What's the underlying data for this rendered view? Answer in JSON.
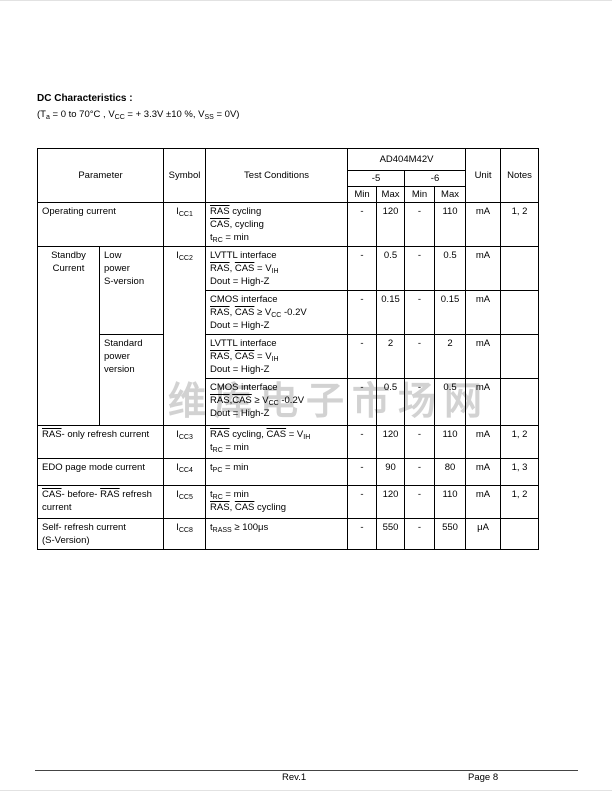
{
  "page": {
    "title": "DC Characteristics :",
    "conditions": "(T_{a} = 0 to  70°C ,  V_{CC} = + 3.3V  ±10 %, V_{SS} = 0V)",
    "watermark": "维库电子市场网",
    "footer": {
      "revision": "Rev.1",
      "page_number": "Page 8"
    }
  },
  "table": {
    "device": "AD404M42V",
    "header_rows": [
      [
        {
          "text": "Parameter",
          "colspan": 2,
          "rowspan": 3
        },
        {
          "text": "Symbol",
          "rowspan": 3
        },
        {
          "text": "Test Conditions",
          "rowspan": 3
        },
        {
          "text": "AD404M42V",
          "colspan": 4
        },
        {
          "text": "Unit",
          "rowspan": 3
        },
        {
          "text": "Notes",
          "rowspan": 3
        }
      ],
      [
        {
          "text": "-5",
          "colspan": 2
        },
        {
          "text": "-6",
          "colspan": 2
        }
      ],
      [
        {
          "text": "Min"
        },
        {
          "text": "Max"
        },
        {
          "text": "Min"
        },
        {
          "text": "Max"
        }
      ]
    ],
    "rows": [
      [
        {
          "lines": [
            "Operating current"
          ],
          "colspan": 2,
          "cls": "param"
        },
        {
          "lines": [
            "I_{CC1}"
          ],
          "cls": "sym"
        },
        {
          "lines": [
            "~RAS~ cycling",
            "~CAS~, cycling",
            "t_{RC} = min"
          ],
          "cls": "cond"
        },
        {
          "lines": [
            "-"
          ],
          "cls": "val"
        },
        {
          "lines": [
            "120"
          ],
          "cls": "val"
        },
        {
          "lines": [
            "-"
          ],
          "cls": "val"
        },
        {
          "lines": [
            "110"
          ],
          "cls": "val"
        },
        {
          "lines": [
            "mA"
          ],
          "cls": "unit"
        },
        {
          "lines": [
            "1, 2"
          ],
          "cls": "notes"
        }
      ],
      [
        {
          "lines": [
            "Standby",
            "Current"
          ],
          "rowspan": 4,
          "cls": "group"
        },
        {
          "lines": [
            "Low",
            "power",
            "S-version"
          ],
          "rowspan": 2,
          "cls": "subgroup"
        },
        {
          "lines": [
            "I_{CC2}"
          ],
          "rowspan": 4,
          "cls": "sym"
        },
        {
          "lines": [
            "LVTTL interface",
            "~RAS~, ~CAS~ = V_{IH}",
            "Dout = High-Z"
          ],
          "cls": "cond"
        },
        {
          "lines": [
            "-"
          ],
          "cls": "val"
        },
        {
          "lines": [
            "0.5"
          ],
          "cls": "val"
        },
        {
          "lines": [
            "-"
          ],
          "cls": "val"
        },
        {
          "lines": [
            "0.5"
          ],
          "cls": "val"
        },
        {
          "lines": [
            "mA"
          ],
          "cls": "unit"
        },
        {
          "lines": [
            ""
          ],
          "cls": "notes"
        }
      ],
      [
        {
          "lines": [
            "CMOS interface",
            "~RAS~,  ~CAS~ ≥ V_{CC} -0.2V",
            "Dout = High-Z"
          ],
          "cls": "cond"
        },
        {
          "lines": [
            "-"
          ],
          "cls": "val"
        },
        {
          "lines": [
            "0.15"
          ],
          "cls": "val"
        },
        {
          "lines": [
            "-"
          ],
          "cls": "val"
        },
        {
          "lines": [
            "0.15"
          ],
          "cls": "val"
        },
        {
          "lines": [
            "mA"
          ],
          "cls": "unit"
        },
        {
          "lines": [
            ""
          ],
          "cls": "notes"
        }
      ],
      [
        {
          "lines": [
            "Standard",
            "power",
            "version"
          ],
          "rowspan": 2,
          "cls": "subgroup"
        },
        {
          "lines": [
            "LVTTL interface",
            "~RAS~, ~CAS~ = V_{IH}",
            "Dout = High-Z"
          ],
          "cls": "cond"
        },
        {
          "lines": [
            "-"
          ],
          "cls": "val"
        },
        {
          "lines": [
            "2"
          ],
          "cls": "val"
        },
        {
          "lines": [
            "-"
          ],
          "cls": "val"
        },
        {
          "lines": [
            "2"
          ],
          "cls": "val"
        },
        {
          "lines": [
            "mA"
          ],
          "cls": "unit"
        },
        {
          "lines": [
            ""
          ],
          "cls": "notes"
        }
      ],
      [
        {
          "lines": [
            "CMOS interface",
            "~RAS~,~CAS~ ≥ V_{CC} -0.2V",
            "Dout = High-Z"
          ],
          "cls": "cond"
        },
        {
          "lines": [
            "-"
          ],
          "cls": "val"
        },
        {
          "lines": [
            "0.5"
          ],
          "cls": "val"
        },
        {
          "lines": [
            "-"
          ],
          "cls": "val"
        },
        {
          "lines": [
            "0.5"
          ],
          "cls": "val"
        },
        {
          "lines": [
            "mA"
          ],
          "cls": "unit"
        },
        {
          "lines": [
            ""
          ],
          "cls": "notes"
        }
      ],
      [
        {
          "lines": [
            "~RAS~- only refresh current"
          ],
          "colspan": 2,
          "cls": "param"
        },
        {
          "lines": [
            "I_{CC3}"
          ],
          "cls": "sym"
        },
        {
          "lines": [
            "~RAS~ cycling, ~CAS~ = V_{IH}",
            "t_{RC} = min"
          ],
          "cls": "cond"
        },
        {
          "lines": [
            "-"
          ],
          "cls": "val"
        },
        {
          "lines": [
            "120"
          ],
          "cls": "val"
        },
        {
          "lines": [
            "-"
          ],
          "cls": "val"
        },
        {
          "lines": [
            "110"
          ],
          "cls": "val"
        },
        {
          "lines": [
            "mA"
          ],
          "cls": "unit"
        },
        {
          "lines": [
            "1, 2"
          ],
          "cls": "notes"
        }
      ],
      [
        {
          "lines": [
            "EDO page mode current"
          ],
          "colspan": 2,
          "cls": "param"
        },
        {
          "lines": [
            "I_{CC4}"
          ],
          "cls": "sym"
        },
        {
          "lines": [
            "t_{PC} = min"
          ],
          "cls": "cond"
        },
        {
          "lines": [
            "-"
          ],
          "cls": "val"
        },
        {
          "lines": [
            "90"
          ],
          "cls": "val"
        },
        {
          "lines": [
            "-"
          ],
          "cls": "val"
        },
        {
          "lines": [
            "80"
          ],
          "cls": "val"
        },
        {
          "lines": [
            "mA"
          ],
          "cls": "unit"
        },
        {
          "lines": [
            "1, 3"
          ],
          "cls": "notes"
        }
      ],
      [
        {
          "lines": [
            "~CAS~- before- ~RAS~ refresh",
            "current"
          ],
          "colspan": 2,
          "cls": "param"
        },
        {
          "lines": [
            "I_{CC5}"
          ],
          "cls": "sym"
        },
        {
          "lines": [
            "t_{RC} = min",
            "~RAS~, ~CAS~ cycling"
          ],
          "cls": "cond"
        },
        {
          "lines": [
            "-"
          ],
          "cls": "val"
        },
        {
          "lines": [
            "120"
          ],
          "cls": "val"
        },
        {
          "lines": [
            "-"
          ],
          "cls": "val"
        },
        {
          "lines": [
            "110"
          ],
          "cls": "val"
        },
        {
          "lines": [
            "mA"
          ],
          "cls": "unit"
        },
        {
          "lines": [
            "1, 2"
          ],
          "cls": "notes"
        }
      ],
      [
        {
          "lines": [
            "Self- refresh current",
            "(S-Version)"
          ],
          "colspan": 2,
          "cls": "param"
        },
        {
          "lines": [
            "I_{CC8}"
          ],
          "cls": "sym"
        },
        {
          "lines": [
            "t_{RASS} ≥ 100μs"
          ],
          "cls": "cond"
        },
        {
          "lines": [
            "-"
          ],
          "cls": "val"
        },
        {
          "lines": [
            "550"
          ],
          "cls": "val"
        },
        {
          "lines": [
            "-"
          ],
          "cls": "val"
        },
        {
          "lines": [
            "550"
          ],
          "cls": "val"
        },
        {
          "lines": [
            "μA"
          ],
          "cls": "unit"
        },
        {
          "lines": [
            ""
          ],
          "cls": "notes"
        }
      ]
    ]
  }
}
